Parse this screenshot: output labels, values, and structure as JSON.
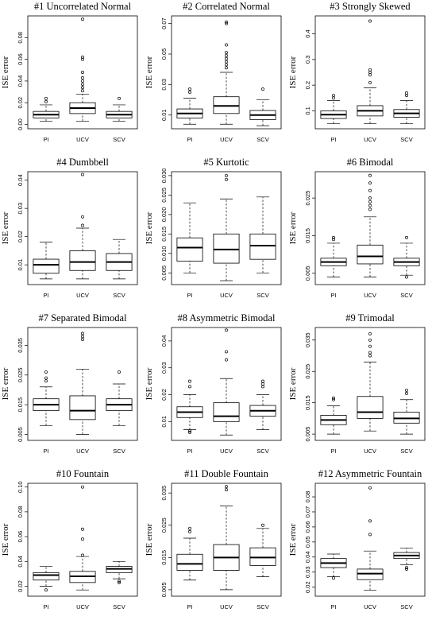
{
  "chart_data": [
    {
      "type": "box",
      "title": "#1 Uncorrelated Normal",
      "y_label": "ISE error",
      "categories": [
        "PI",
        "UCV",
        "SCV"
      ],
      "ylim": [
        -0.004,
        0.1
      ],
      "yticks": [
        {
          "value": 0,
          "label": "0.00"
        },
        0.02,
        0.04,
        0.06,
        0.08
      ],
      "boxes": [
        {
          "min": 0.003,
          "q1": 0.006,
          "median": 0.009,
          "q3": 0.012,
          "max": 0.018,
          "outliers": [
            0.021,
            0.024
          ]
        },
        {
          "min": 0.003,
          "q1": 0.01,
          "median": 0.015,
          "q3": 0.02,
          "max": 0.028,
          "outliers": [
            0.031,
            0.034,
            0.037,
            0.04,
            0.043,
            0.048,
            0.06,
            0.062,
            0.097
          ]
        },
        {
          "min": 0.003,
          "q1": 0.006,
          "median": 0.009,
          "q3": 0.012,
          "max": 0.018,
          "outliers": [
            0.024
          ]
        }
      ]
    },
    {
      "type": "box",
      "title": "#2 Correlated Normal",
      "y_label": "ISE error",
      "categories": [
        "PI",
        "UCV",
        "SCV"
      ],
      "ylim": [
        0.001,
        0.075
      ],
      "yticks": [
        0.01,
        0.03,
        0.05,
        0.07
      ],
      "boxes": [
        {
          "min": 0.004,
          "q1": 0.008,
          "median": 0.011,
          "q3": 0.014,
          "max": 0.021,
          "outliers": [
            0.025,
            0.027
          ]
        },
        {
          "min": 0.004,
          "q1": 0.011,
          "median": 0.016,
          "q3": 0.022,
          "max": 0.038,
          "outliers": [
            0.041,
            0.043,
            0.045,
            0.047,
            0.049,
            0.051,
            0.056,
            0.07,
            0.071
          ]
        },
        {
          "min": 0.003,
          "q1": 0.007,
          "median": 0.01,
          "q3": 0.013,
          "max": 0.02,
          "outliers": [
            0.027
          ]
        }
      ]
    },
    {
      "type": "box",
      "title": "#3 Strongly Skewed",
      "y_label": "ISE error",
      "categories": [
        "PI",
        "UCV",
        "SCV"
      ],
      "ylim": [
        0.03,
        0.47
      ],
      "yticks": [
        0.1,
        0.2,
        0.3,
        0.4
      ],
      "boxes": [
        {
          "min": 0.05,
          "q1": 0.07,
          "median": 0.085,
          "q3": 0.1,
          "max": 0.14,
          "outliers": [
            0.15,
            0.16
          ]
        },
        {
          "min": 0.05,
          "q1": 0.08,
          "median": 0.1,
          "q3": 0.12,
          "max": 0.19,
          "outliers": [
            0.21,
            0.24,
            0.25,
            0.26,
            0.45
          ]
        },
        {
          "min": 0.05,
          "q1": 0.075,
          "median": 0.09,
          "q3": 0.105,
          "max": 0.14,
          "outliers": [
            0.16,
            0.17
          ]
        }
      ]
    },
    {
      "type": "box",
      "title": "#4 Dumbbell",
      "y_label": "ISE error",
      "categories": [
        "PI",
        "UCV",
        "SCV"
      ],
      "ylim": [
        0.003,
        0.043
      ],
      "yticks": [
        0.01,
        0.02,
        0.03,
        0.04
      ],
      "boxes": [
        {
          "min": 0.005,
          "q1": 0.007,
          "median": 0.01,
          "q3": 0.012,
          "max": 0.018,
          "outliers": []
        },
        {
          "min": 0.005,
          "q1": 0.008,
          "median": 0.011,
          "q3": 0.015,
          "max": 0.023,
          "outliers": [
            0.024,
            0.027,
            0.042
          ]
        },
        {
          "min": 0.005,
          "q1": 0.008,
          "median": 0.011,
          "q3": 0.014,
          "max": 0.019,
          "outliers": []
        }
      ]
    },
    {
      "type": "box",
      "title": "#5 Kurtotic",
      "y_label": "ISE error",
      "categories": [
        "PI",
        "UCV",
        "SCV"
      ],
      "ylim": [
        0.002,
        0.031
      ],
      "yticks": [
        0.005,
        {
          "value": 0.01,
          "label": "0.010"
        },
        0.015,
        {
          "value": 0.02,
          "label": "0.020"
        },
        0.025,
        {
          "value": 0.03,
          "label": "0.030"
        }
      ],
      "boxes": [
        {
          "min": 0.005,
          "q1": 0.008,
          "median": 0.0115,
          "q3": 0.014,
          "max": 0.023,
          "outliers": []
        },
        {
          "min": 0.003,
          "q1": 0.0075,
          "median": 0.011,
          "q3": 0.015,
          "max": 0.024,
          "outliers": [
            0.029,
            0.03
          ]
        },
        {
          "min": 0.005,
          "q1": 0.0085,
          "median": 0.012,
          "q3": 0.015,
          "max": 0.0245,
          "outliers": []
        }
      ]
    },
    {
      "type": "box",
      "title": "#6 Bimodal",
      "y_label": "ISE error",
      "categories": [
        "PI",
        "UCV",
        "SCV"
      ],
      "ylim": [
        0.002,
        0.032
      ],
      "yticks": [
        0.005,
        0.015,
        0.025
      ],
      "boxes": [
        {
          "min": 0.004,
          "q1": 0.007,
          "median": 0.008,
          "q3": 0.009,
          "max": 0.013,
          "outliers": [
            0.014,
            0.0145
          ]
        },
        {
          "min": 0.004,
          "q1": 0.0075,
          "median": 0.0095,
          "q3": 0.0125,
          "max": 0.02,
          "outliers": [
            0.022,
            0.023,
            0.024,
            0.025,
            0.027,
            0.029,
            0.031
          ]
        },
        {
          "min": 0.0045,
          "q1": 0.007,
          "median": 0.008,
          "q3": 0.009,
          "max": 0.013,
          "outliers": [
            0.004,
            0.0145
          ]
        }
      ]
    },
    {
      "type": "box",
      "title": "#7 Separated Bimodal",
      "y_label": "ISE error",
      "categories": [
        "PI",
        "UCV",
        "SCV"
      ],
      "ylim": [
        0.003,
        0.041
      ],
      "yticks": [
        0.005,
        0.015,
        0.025,
        0.035
      ],
      "boxes": [
        {
          "min": 0.008,
          "q1": 0.013,
          "median": 0.015,
          "q3": 0.017,
          "max": 0.021,
          "outliers": [
            0.023,
            0.024,
            0.026
          ]
        },
        {
          "min": 0.005,
          "q1": 0.01,
          "median": 0.013,
          "q3": 0.018,
          "max": 0.027,
          "outliers": [
            0.037,
            0.038,
            0.039
          ]
        },
        {
          "min": 0.008,
          "q1": 0.013,
          "median": 0.015,
          "q3": 0.017,
          "max": 0.022,
          "outliers": [
            0.026
          ]
        }
      ]
    },
    {
      "type": "box",
      "title": "#8 Asymmetric Bimodal",
      "y_label": "ISE error",
      "categories": [
        "PI",
        "UCV",
        "SCV"
      ],
      "ylim": [
        0.003,
        0.045
      ],
      "yticks": [
        0.01,
        0.02,
        0.03,
        0.04
      ],
      "boxes": [
        {
          "min": 0.007,
          "q1": 0.0115,
          "median": 0.0135,
          "q3": 0.0155,
          "max": 0.02,
          "outliers": [
            0.006,
            0.0065,
            0.023,
            0.025
          ]
        },
        {
          "min": 0.005,
          "q1": 0.01,
          "median": 0.012,
          "q3": 0.017,
          "max": 0.026,
          "outliers": [
            0.033,
            0.036,
            0.044
          ]
        },
        {
          "min": 0.007,
          "q1": 0.012,
          "median": 0.014,
          "q3": 0.016,
          "max": 0.02,
          "outliers": [
            0.023,
            0.024,
            0.025
          ]
        }
      ]
    },
    {
      "type": "box",
      "title": "#9 Trimodal",
      "y_label": "ISE error",
      "categories": [
        "PI",
        "UCV",
        "SCV"
      ],
      "ylim": [
        0.003,
        0.039
      ],
      "yticks": [
        0.005,
        0.015,
        0.025,
        0.035
      ],
      "boxes": [
        {
          "min": 0.005,
          "q1": 0.008,
          "median": 0.0095,
          "q3": 0.011,
          "max": 0.014,
          "outliers": [
            0.016,
            0.0165
          ]
        },
        {
          "min": 0.006,
          "q1": 0.01,
          "median": 0.012,
          "q3": 0.017,
          "max": 0.028,
          "outliers": [
            0.03,
            0.031,
            0.033,
            0.035,
            0.037
          ]
        },
        {
          "min": 0.005,
          "q1": 0.0085,
          "median": 0.01,
          "q3": 0.012,
          "max": 0.016,
          "outliers": [
            0.018,
            0.019
          ]
        }
      ]
    },
    {
      "type": "box",
      "title": "#10 Fountain",
      "y_label": "ISE error",
      "categories": [
        "PI",
        "UCV",
        "SCV"
      ],
      "ylim": [
        0.012,
        0.103
      ],
      "yticks": [
        0.02,
        0.04,
        0.06,
        0.08,
        {
          "value": 0.1,
          "label": "0.10"
        }
      ],
      "boxes": [
        {
          "min": 0.02,
          "q1": 0.025,
          "median": 0.029,
          "q3": 0.031,
          "max": 0.036,
          "outliers": [
            0.017
          ]
        },
        {
          "min": 0.017,
          "q1": 0.023,
          "median": 0.028,
          "q3": 0.032,
          "max": 0.044,
          "outliers": [
            0.045,
            0.058,
            0.066,
            0.1
          ]
        },
        {
          "min": 0.026,
          "q1": 0.031,
          "median": 0.034,
          "q3": 0.036,
          "max": 0.04,
          "outliers": [
            0.023,
            0.024
          ]
        }
      ]
    },
    {
      "type": "box",
      "title": "#11 Double Fountain",
      "y_label": "ISE error",
      "categories": [
        "PI",
        "UCV",
        "SCV"
      ],
      "ylim": [
        0.003,
        0.038
      ],
      "yticks": [
        0.005,
        0.015,
        0.025,
        0.035
      ],
      "boxes": [
        {
          "min": 0.008,
          "q1": 0.011,
          "median": 0.013,
          "q3": 0.016,
          "max": 0.021,
          "outliers": [
            0.023,
            0.024
          ]
        },
        {
          "min": 0.005,
          "q1": 0.011,
          "median": 0.015,
          "q3": 0.019,
          "max": 0.031,
          "outliers": [
            0.036,
            0.037
          ]
        },
        {
          "min": 0.009,
          "q1": 0.0125,
          "median": 0.015,
          "q3": 0.018,
          "max": 0.024,
          "outliers": [
            0.025
          ]
        }
      ]
    },
    {
      "type": "box",
      "title": "#12 Asymmetric Fountain",
      "y_label": "ISE error",
      "categories": [
        "PI",
        "UCV",
        "SCV"
      ],
      "ylim": [
        0.014,
        0.089
      ],
      "yticks": [
        0.02,
        0.03,
        0.04,
        0.05,
        0.06,
        0.07,
        0.08
      ],
      "boxes": [
        {
          "min": 0.027,
          "q1": 0.033,
          "median": 0.036,
          "q3": 0.039,
          "max": 0.042,
          "outliers": [
            0.026
          ]
        },
        {
          "min": 0.018,
          "q1": 0.025,
          "median": 0.029,
          "q3": 0.032,
          "max": 0.044,
          "outliers": [
            0.055,
            0.064,
            0.086
          ]
        },
        {
          "min": 0.035,
          "q1": 0.039,
          "median": 0.041,
          "q3": 0.043,
          "max": 0.046,
          "outliers": [
            0.032,
            0.033
          ]
        }
      ]
    }
  ]
}
